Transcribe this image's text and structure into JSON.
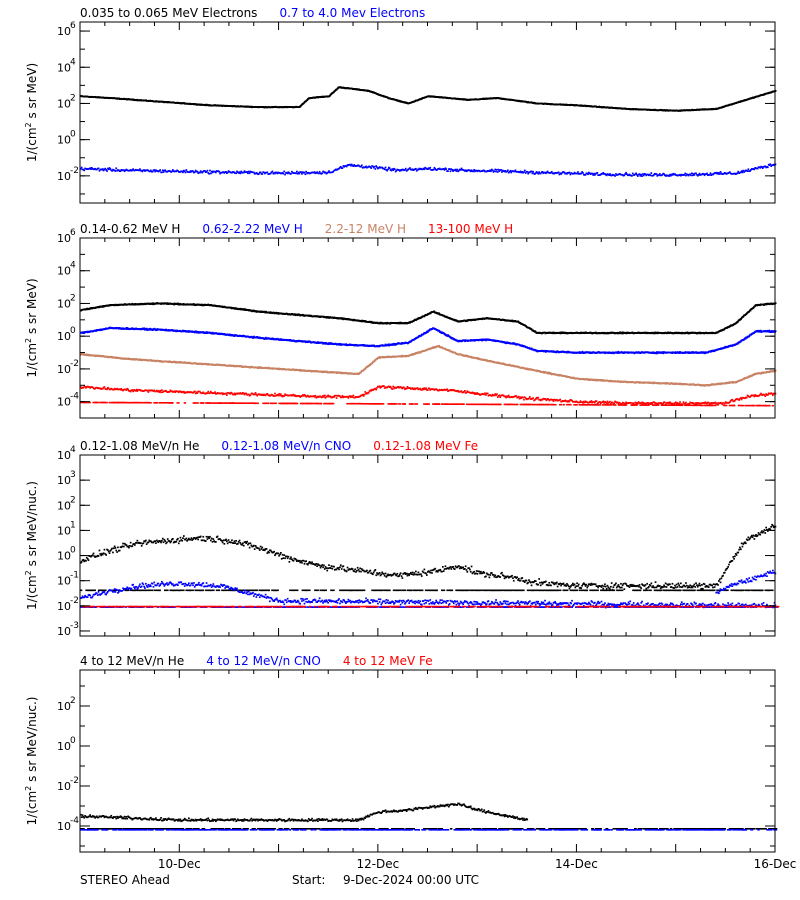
{
  "footer": {
    "left": "STEREO Ahead",
    "start_label": "Start:",
    "start_value": "9-Dec-2024 00:00 UTC"
  },
  "x_axis": {
    "tick_labels": [
      "10-Dec",
      "12-Dec",
      "14-Dec",
      "16-Dec"
    ],
    "tick_days": [
      10,
      12,
      14,
      16
    ],
    "range_days": [
      9.0,
      16.0
    ]
  },
  "colors": {
    "black": "#000000",
    "blue": "#0000ff",
    "tan": "#c88264",
    "red": "#ff0000"
  },
  "chart_data": [
    {
      "type": "scatter",
      "ylabel_base": "1/(cm",
      "ylabel_sup": "2",
      "ylabel_rest": " s sr MeV)",
      "y_scale": "log",
      "ylim_exp": [
        -3.5,
        6.5
      ],
      "tick_exps": [
        -2,
        0,
        2,
        4,
        6
      ],
      "legend": [
        {
          "name": "0.035 to 0.065 MeV Electrons",
          "color": "#000000"
        },
        {
          "name": "0.7 to 4.0 Mev Electrons",
          "color": "#0000ff"
        }
      ],
      "series": [
        {
          "color": "#000000",
          "style": "line",
          "noise": 0.03,
          "x": [
            9.0,
            9.3,
            9.8,
            10.3,
            10.8,
            11.2,
            11.3,
            11.5,
            11.6,
            11.9,
            12.1,
            12.3,
            12.5,
            12.7,
            12.9,
            13.2,
            13.6,
            14.0,
            14.5,
            15.0,
            15.4,
            15.7,
            16.0
          ],
          "y": [
            2.4,
            2.3,
            2.1,
            1.9,
            1.8,
            1.8,
            2.3,
            2.4,
            2.9,
            2.7,
            2.3,
            2.0,
            2.4,
            2.3,
            2.2,
            2.3,
            2.0,
            1.9,
            1.7,
            1.6,
            1.7,
            2.2,
            2.7
          ]
        },
        {
          "color": "#0000ff",
          "style": "scatter",
          "noise": 0.12,
          "x": [
            9.0,
            9.5,
            10.0,
            10.5,
            11.0,
            11.5,
            11.7,
            11.9,
            12.2,
            12.5,
            12.9,
            13.3,
            13.8,
            14.3,
            14.8,
            15.3,
            15.6,
            15.8,
            16.0
          ],
          "y": [
            -1.6,
            -1.7,
            -1.75,
            -1.8,
            -1.85,
            -1.8,
            -1.4,
            -1.5,
            -1.7,
            -1.6,
            -1.7,
            -1.75,
            -1.85,
            -1.9,
            -1.95,
            -1.9,
            -1.85,
            -1.6,
            -1.35
          ]
        }
      ]
    },
    {
      "type": "scatter",
      "ylabel_base": "1/(cm",
      "ylabel_sup": "2",
      "ylabel_rest": " s sr MeV)",
      "y_scale": "log",
      "ylim_exp": [
        -5,
        6
      ],
      "tick_exps": [
        -4,
        -2,
        0,
        2,
        4,
        6
      ],
      "legend": [
        {
          "name": "0.14-0.62 MeV H",
          "color": "#000000"
        },
        {
          "name": "0.62-2.22 MeV H",
          "color": "#0000ff"
        },
        {
          "name": "2.2-12 MeV H",
          "color": "#c88264"
        },
        {
          "name": "13-100 MeV H",
          "color": "#ff0000"
        }
      ],
      "series": [
        {
          "color": "#000000",
          "style": "line",
          "noise": 0.05,
          "x": [
            9.0,
            9.3,
            9.8,
            10.3,
            10.8,
            11.2,
            11.6,
            12.0,
            12.3,
            12.55,
            12.8,
            13.1,
            13.4,
            13.6,
            14.0,
            14.5,
            15.0,
            15.4,
            15.6,
            15.8,
            16.0
          ],
          "y": [
            1.6,
            1.9,
            2.0,
            1.9,
            1.5,
            1.3,
            1.1,
            0.8,
            0.8,
            1.5,
            0.9,
            1.1,
            0.9,
            0.2,
            0.2,
            0.2,
            0.2,
            0.2,
            0.8,
            1.9,
            2.0
          ]
        },
        {
          "color": "#0000ff",
          "style": "line",
          "noise": 0.06,
          "x": [
            9.0,
            9.3,
            9.8,
            10.3,
            10.8,
            11.2,
            11.6,
            12.0,
            12.3,
            12.55,
            12.8,
            13.1,
            13.4,
            13.6,
            14.0,
            14.5,
            15.0,
            15.3,
            15.6,
            15.8,
            16.0
          ],
          "y": [
            0.2,
            0.5,
            0.4,
            0.2,
            -0.1,
            -0.3,
            -0.5,
            -0.6,
            -0.4,
            0.5,
            -0.3,
            -0.2,
            -0.5,
            -0.9,
            -1.0,
            -1.0,
            -1.0,
            -1.0,
            -0.5,
            0.3,
            0.3
          ]
        },
        {
          "color": "#c88264",
          "style": "line",
          "noise": 0.05,
          "x": [
            9.0,
            9.5,
            10.0,
            10.5,
            11.0,
            11.5,
            11.8,
            12.0,
            12.3,
            12.6,
            12.8,
            13.1,
            13.5,
            14.0,
            14.5,
            15.0,
            15.3,
            15.6,
            15.8,
            16.0
          ],
          "y": [
            -1.1,
            -1.4,
            -1.6,
            -1.8,
            -2.0,
            -2.2,
            -2.3,
            -1.3,
            -1.2,
            -0.6,
            -1.1,
            -1.5,
            -2.0,
            -2.6,
            -2.8,
            -2.9,
            -3.0,
            -2.8,
            -2.3,
            -2.1
          ]
        },
        {
          "color": "#ff0000",
          "style": "scatter",
          "noise": 0.12,
          "x": [
            9.0,
            9.5,
            10.0,
            10.5,
            11.0,
            11.5,
            11.8,
            12.0,
            12.4,
            12.7,
            13.0,
            13.5,
            14.0,
            14.5,
            15.0,
            15.5,
            15.7,
            16.0
          ],
          "y": [
            -3.1,
            -3.3,
            -3.4,
            -3.5,
            -3.6,
            -3.7,
            -3.7,
            -3.1,
            -3.2,
            -3.3,
            -3.5,
            -3.8,
            -4.0,
            -4.1,
            -4.1,
            -4.1,
            -3.7,
            -3.5
          ]
        },
        {
          "color": "#ff0000",
          "style": "floor",
          "noise": 0.0,
          "x": [
            9.0,
            16.0
          ],
          "y": [
            -4.0,
            -4.2
          ]
        }
      ]
    },
    {
      "type": "scatter",
      "ylabel_base": "1/(cm",
      "ylabel_sup": "2",
      "ylabel_rest": " s sr MeV/nuc.)",
      "y_scale": "log",
      "ylim_exp": [
        -3.2,
        4
      ],
      "tick_exps": [
        -3,
        -2,
        -1,
        0,
        1,
        2,
        3,
        4
      ],
      "legend": [
        {
          "name": "0.12-1.08 MeV/n He",
          "color": "#000000"
        },
        {
          "name": "0.12-1.08 MeV/n CNO",
          "color": "#0000ff"
        },
        {
          "name": "0.12-1.08 MeV Fe",
          "color": "#ff0000"
        }
      ],
      "series": [
        {
          "color": "#000000",
          "style": "scatter",
          "noise": 0.18,
          "x": [
            9.0,
            9.3,
            9.6,
            9.9,
            10.2,
            10.5,
            10.8,
            11.1,
            11.4,
            11.8,
            12.2,
            12.6,
            12.8,
            13.0,
            13.4,
            13.6,
            14.0,
            14.5,
            15.0,
            15.4,
            15.55,
            15.7,
            16.0
          ],
          "y": [
            -0.2,
            0.2,
            0.5,
            0.6,
            0.7,
            0.6,
            0.3,
            -0.1,
            -0.4,
            -0.6,
            -0.8,
            -0.6,
            -0.4,
            -0.7,
            -0.9,
            -1.1,
            -1.2,
            -1.2,
            -1.2,
            -1.2,
            -0.2,
            0.6,
            1.2
          ]
        },
        {
          "color": "#000000",
          "style": "floor",
          "noise": 0.0,
          "x": [
            9.0,
            16.0
          ],
          "y": [
            -1.35,
            -1.35
          ]
        },
        {
          "color": "#0000ff",
          "style": "scatter",
          "noise": 0.15,
          "x": [
            9.0,
            9.3,
            9.6,
            10.0,
            10.4,
            10.7,
            11.0,
            16.0
          ],
          "y": [
            -1.7,
            -1.4,
            -1.2,
            -1.1,
            -1.2,
            -1.5,
            -1.8,
            -2.0
          ]
        },
        {
          "color": "#0000ff",
          "style": "scatter",
          "noise": 0.15,
          "x": [
            15.4,
            15.6,
            15.8,
            16.0
          ],
          "y": [
            -1.5,
            -1.1,
            -0.9,
            -0.6
          ]
        },
        {
          "color": "#0000ff",
          "style": "floor",
          "noise": 0.0,
          "x": [
            9.0,
            16.0
          ],
          "y": [
            -2.02,
            -2.02
          ]
        },
        {
          "color": "#ff0000",
          "style": "floor",
          "noise": 0.0,
          "x": [
            9.0,
            16.0
          ],
          "y": [
            -2.0,
            -2.0
          ]
        }
      ]
    },
    {
      "type": "scatter",
      "ylabel_base": "1/(cm",
      "ylabel_sup": "2",
      "ylabel_rest": " s sr MeV/nuc.)",
      "y_scale": "log",
      "ylim_exp": [
        -5.3,
        3.8
      ],
      "tick_exps": [
        -4,
        -2,
        0,
        2
      ],
      "legend": [
        {
          "name": "4 to 12 MeV/n He",
          "color": "#000000"
        },
        {
          "name": "4 to 12 MeV/n CNO",
          "color": "#0000ff"
        },
        {
          "name": "4 to 12 MeV Fe",
          "color": "#ff0000"
        }
      ],
      "series": [
        {
          "color": "#000000",
          "style": "scatter",
          "noise": 0.1,
          "x": [
            9.0,
            9.5,
            10.0,
            10.5,
            11.0,
            11.5,
            11.8,
            12.0,
            12.3,
            12.6,
            12.8,
            13.0,
            13.3,
            13.5
          ],
          "y": [
            -3.5,
            -3.6,
            -3.7,
            -3.7,
            -3.7,
            -3.7,
            -3.7,
            -3.3,
            -3.2,
            -3.0,
            -2.9,
            -3.2,
            -3.5,
            -3.7
          ]
        },
        {
          "color": "#000000",
          "style": "floor",
          "noise": 0.0,
          "x": [
            9.0,
            16.0
          ],
          "y": [
            -4.1,
            -4.1
          ]
        },
        {
          "color": "#0000ff",
          "style": "floor",
          "noise": 0.0,
          "x": [
            9.0,
            16.0
          ],
          "y": [
            -4.15,
            -4.15
          ]
        }
      ]
    }
  ]
}
